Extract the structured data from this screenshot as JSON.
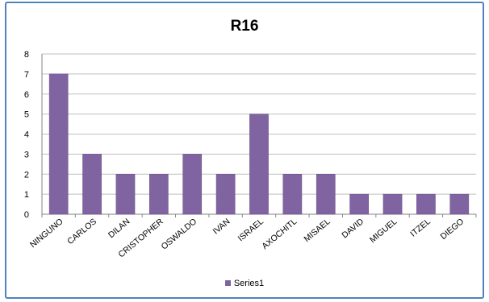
{
  "chart_data": {
    "type": "bar",
    "title": "R16",
    "xlabel": "",
    "ylabel": "",
    "categories": [
      "NINGUNO",
      "CARLOS",
      "DILAN",
      "CRISTOPHER",
      "OSWALDO",
      "IVAN",
      "ISRAEL",
      "AXOCHITL",
      "MISAEL",
      "DAVID",
      "MIGUEL",
      "ITZEL",
      "DIEGO"
    ],
    "series": [
      {
        "name": "Series1",
        "values": [
          7,
          3,
          2,
          2,
          3,
          2,
          5,
          2,
          2,
          1,
          1,
          1,
          1
        ],
        "color": "#8064a2"
      }
    ],
    "ylim": [
      0,
      8
    ],
    "yticks": [
      "0",
      "1",
      "2",
      "3",
      "4",
      "5",
      "6",
      "7",
      "8"
    ],
    "grid": true,
    "legend_position": "bottom",
    "frame_color": "#4f81bd"
  }
}
